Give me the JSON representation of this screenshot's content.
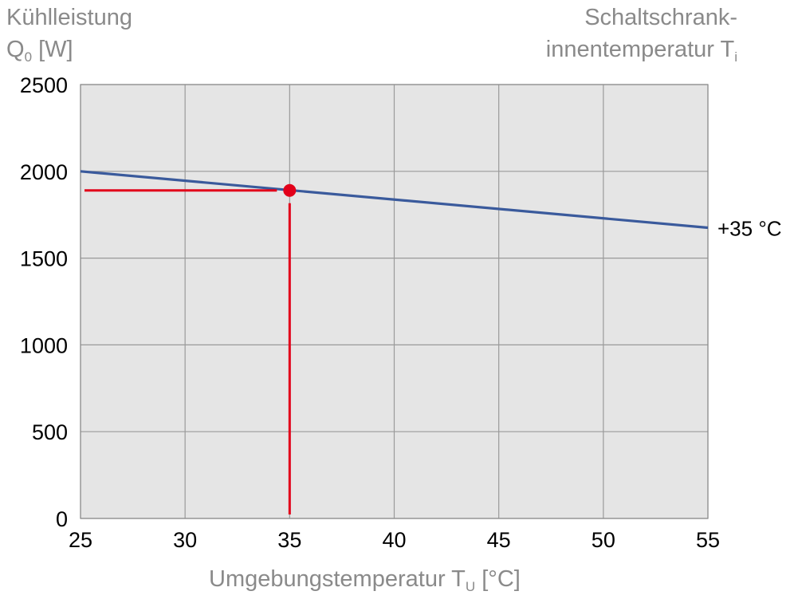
{
  "chart_data": {
    "type": "line",
    "ylabel": {
      "line1": "Kühlleistung",
      "symbol": "Q",
      "subscript": "0",
      "unit": "[W]"
    },
    "right_label": {
      "line1": "Schaltschrank-",
      "line2": "innentemperatur T",
      "subscript": "i"
    },
    "xlabel": {
      "text": "Umgebungstemperatur T",
      "subscript": "U",
      "unit": "[°C]"
    },
    "xlim": [
      25,
      55
    ],
    "ylim": [
      0,
      2500
    ],
    "xticks": [
      "25",
      "30",
      "35",
      "40",
      "45",
      "50",
      "55"
    ],
    "yticks": [
      "0",
      "500",
      "1000",
      "1500",
      "2000",
      "2500"
    ],
    "grid": true,
    "series": [
      {
        "name": "+35 °C",
        "color": "#3a5a9c",
        "x": [
          25,
          55
        ],
        "y": [
          2000,
          1675
        ]
      }
    ],
    "marker": {
      "x": 35,
      "y": 1890,
      "color": "#e2001a"
    }
  }
}
